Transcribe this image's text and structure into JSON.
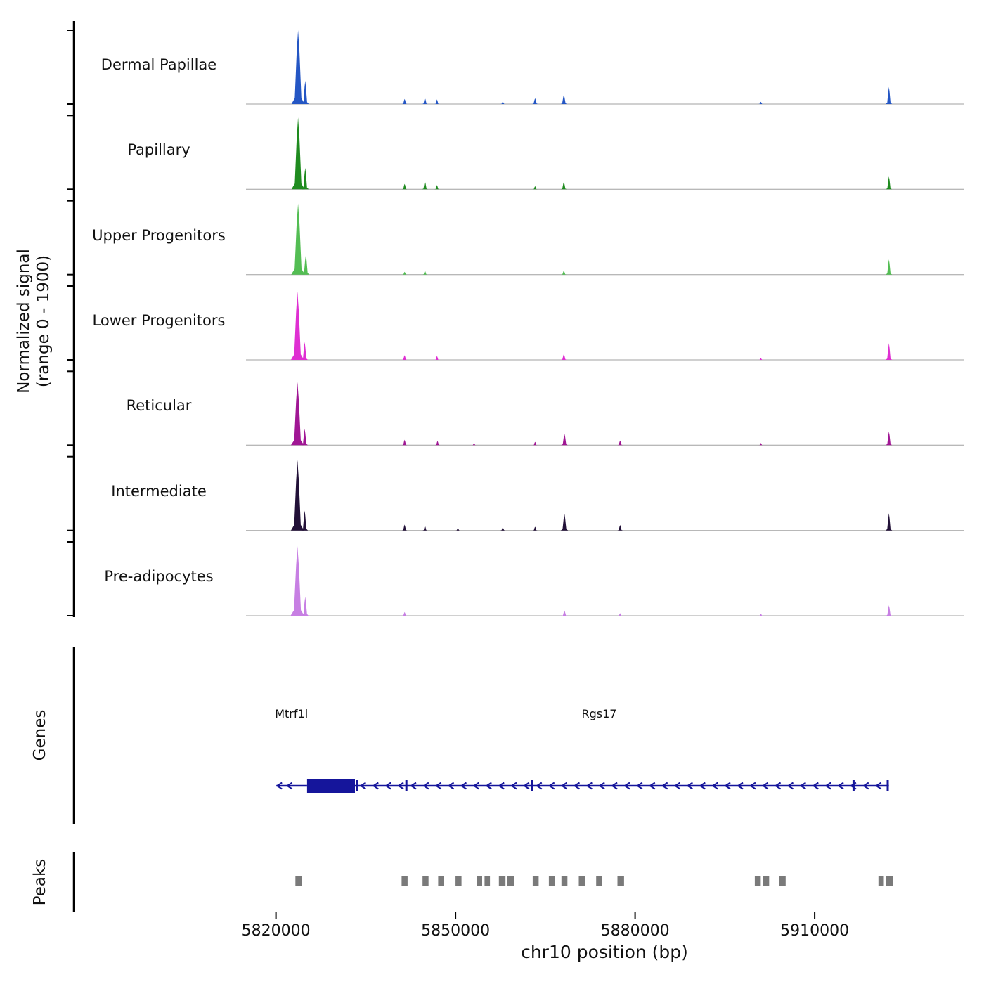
{
  "figure": {
    "y_axis_label_line1": "Normalized signal",
    "y_axis_label_line2": "(range 0 - 1900)",
    "genes_section_label": "Genes",
    "peaks_section_label": "Peaks",
    "x_axis_title": "chr10 position (bp)"
  },
  "chart_data": {
    "type": "area",
    "x_range_bp": [
      5815000,
      5935000
    ],
    "y_range": [
      0,
      1900
    ],
    "x_ticks": [
      {
        "bp": 5820000,
        "label": "5820000"
      },
      {
        "bp": 5850000,
        "label": "5850000"
      },
      {
        "bp": 5880000,
        "label": "5880000"
      },
      {
        "bp": 5910000,
        "label": "5910000"
      }
    ],
    "colors": {
      "gene": "#15159b",
      "peak_region": "#7a7a7a",
      "baseline": "#a0a0a0",
      "axis": "#000000"
    },
    "tracks": [
      {
        "name": "Dermal Papillae",
        "color": "#2456c4",
        "peaks": [
          [
            5823700,
            1900,
            1100
          ],
          [
            5824900,
            600,
            600
          ],
          [
            5841500,
            130,
            450
          ],
          [
            5844900,
            160,
            480
          ],
          [
            5846900,
            120,
            420
          ],
          [
            5857900,
            60,
            420
          ],
          [
            5863300,
            150,
            500
          ],
          [
            5868100,
            240,
            550
          ],
          [
            5901000,
            60,
            420
          ],
          [
            5922400,
            440,
            550
          ]
        ]
      },
      {
        "name": "Papillary",
        "color": "#1f8b1f",
        "peaks": [
          [
            5823700,
            1850,
            1100
          ],
          [
            5824900,
            550,
            580
          ],
          [
            5841500,
            140,
            450
          ],
          [
            5844900,
            210,
            500
          ],
          [
            5846900,
            110,
            420
          ],
          [
            5863300,
            80,
            440
          ],
          [
            5868100,
            190,
            520
          ],
          [
            5922400,
            330,
            520
          ]
        ]
      },
      {
        "name": "Upper Progenitors",
        "color": "#53bd53",
        "peaks": [
          [
            5823700,
            1830,
            1150
          ],
          [
            5825000,
            510,
            600
          ],
          [
            5841500,
            70,
            400
          ],
          [
            5844900,
            100,
            440
          ],
          [
            5868100,
            100,
            470
          ],
          [
            5922400,
            390,
            540
          ]
        ]
      },
      {
        "name": "Lower Progenitors",
        "color": "#df2fd2",
        "peaks": [
          [
            5823600,
            1760,
            1100
          ],
          [
            5824800,
            460,
            560
          ],
          [
            5841500,
            120,
            440
          ],
          [
            5846900,
            100,
            420
          ],
          [
            5868100,
            150,
            500
          ],
          [
            5901000,
            45,
            380
          ],
          [
            5922400,
            430,
            550
          ]
        ]
      },
      {
        "name": "Reticular",
        "color": "#a01694",
        "peaks": [
          [
            5823600,
            1620,
            1100
          ],
          [
            5824800,
            420,
            560
          ],
          [
            5841500,
            140,
            440
          ],
          [
            5847000,
            110,
            420
          ],
          [
            5853100,
            55,
            380
          ],
          [
            5863300,
            85,
            420
          ],
          [
            5868200,
            290,
            570
          ],
          [
            5877500,
            120,
            460
          ],
          [
            5901000,
            55,
            380
          ],
          [
            5922400,
            350,
            540
          ]
        ]
      },
      {
        "name": "Intermediate",
        "color": "#221138",
        "peaks": [
          [
            5823600,
            1810,
            1100
          ],
          [
            5824800,
            510,
            560
          ],
          [
            5841500,
            150,
            440
          ],
          [
            5844900,
            120,
            420
          ],
          [
            5850400,
            65,
            380
          ],
          [
            5857900,
            75,
            420
          ],
          [
            5863300,
            95,
            420
          ],
          [
            5868200,
            430,
            620
          ],
          [
            5877500,
            140,
            460
          ],
          [
            5922400,
            440,
            550
          ]
        ]
      },
      {
        "name": "Pre-adipocytes",
        "color": "#c77fe3",
        "peaks": [
          [
            5823600,
            1790,
            1150
          ],
          [
            5824900,
            490,
            580
          ],
          [
            5841500,
            95,
            420
          ],
          [
            5868200,
            130,
            500
          ],
          [
            5877500,
            65,
            380
          ],
          [
            5901000,
            55,
            380
          ],
          [
            5922400,
            270,
            520
          ]
        ]
      }
    ],
    "genes": [
      {
        "name": "Mtrf1l",
        "strand": "-",
        "line": [
          5820100,
          5825200
        ],
        "thick_exon": [
          5825200,
          5833200
        ],
        "arrow_bps": [
          5820600,
          5822300
        ],
        "exon_ticks": [],
        "label_bp": 5822600
      },
      {
        "name": "Rgs17",
        "strand": "-",
        "line": [
          5833200,
          5922400
        ],
        "thick_exon": null,
        "arrow_start": 5834600,
        "arrow_end": 5921400,
        "arrow_step": 2100,
        "exon_ticks": [
          5833600,
          5841800,
          5862800,
          5916500,
          5922200
        ],
        "label_bp": 5874000
      }
    ],
    "peak_regions": [
      [
        5823800,
        1100
      ],
      [
        5841500,
        1000
      ],
      [
        5845000,
        1000
      ],
      [
        5847600,
        1000
      ],
      [
        5850500,
        1000
      ],
      [
        5854000,
        900
      ],
      [
        5855300,
        900
      ],
      [
        5857800,
        1100
      ],
      [
        5859200,
        1100
      ],
      [
        5863400,
        1000
      ],
      [
        5866100,
        1000
      ],
      [
        5868200,
        1000
      ],
      [
        5871100,
        1000
      ],
      [
        5874000,
        1000
      ],
      [
        5877600,
        1100
      ],
      [
        5900500,
        1000
      ],
      [
        5901900,
        1000
      ],
      [
        5904600,
        1100
      ],
      [
        5921100,
        900
      ],
      [
        5922500,
        1100
      ]
    ]
  }
}
